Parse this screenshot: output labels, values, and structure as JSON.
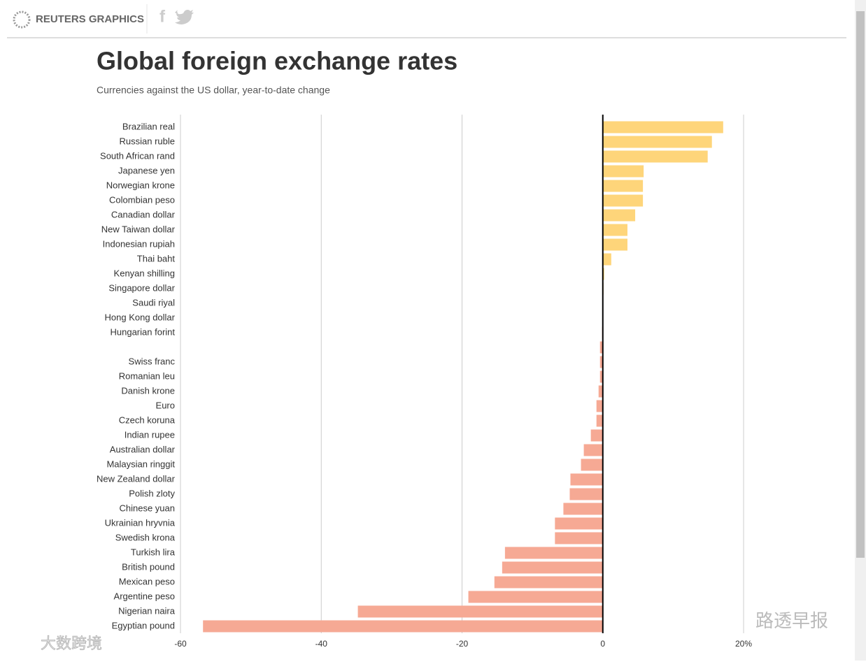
{
  "header": {
    "brand": "REUTERS GRAPHICS"
  },
  "watermarks": [
    "路透早报",
    "大数跨境"
  ],
  "chart_data": {
    "type": "barh",
    "title": "Global foreign exchange rates",
    "subtitle": "Currencies against the US dollar, year-to-date change",
    "categories": [
      "Brazilian real",
      "Russian ruble",
      "South African rand",
      "Japanese yen",
      "Norwegian krone",
      "Colombian peso",
      "Canadian dollar",
      "New Taiwan dollar",
      "Indonesian rupiah",
      "Thai baht",
      "Kenyan shilling",
      "Singapore dollar",
      "Saudi riyal",
      "Hong Kong dollar",
      "Hungarian forint",
      null,
      "Swiss franc",
      "Romanian leu",
      "Danish krone",
      "Euro",
      "Czech koruna",
      "Indian rupee",
      "Australian dollar",
      "Malaysian ringgit",
      "New Zealand dollar",
      "Polish zloty",
      "Chinese yuan",
      "Ukrainian hryvnia",
      "Swedish krona",
      "Turkish lira",
      "British pound",
      "Mexican peso",
      "Argentine peso",
      "Nigerian naira",
      "Egyptian pound"
    ],
    "values": [
      17.1,
      15.5,
      14.9,
      5.8,
      5.7,
      5.7,
      4.6,
      3.5,
      3.5,
      1.2,
      0.2,
      0.1,
      0,
      0,
      -0.1,
      -0.4,
      -0.4,
      -0.4,
      -0.6,
      -0.9,
      -0.9,
      -1.7,
      -2.7,
      -3.1,
      -4.6,
      -4.7,
      -5.6,
      -6.8,
      -6.8,
      -13.9,
      -14.3,
      -15.4,
      -19.1,
      -34.8,
      -56.8
    ],
    "colors": {
      "positive": "#fed57a",
      "negative": "#f6a994"
    },
    "xlim": [
      -60,
      20
    ],
    "xticks": [
      -60,
      -40,
      -20,
      0,
      {
        "value": 20,
        "label": "20%"
      }
    ],
    "grid": true
  }
}
